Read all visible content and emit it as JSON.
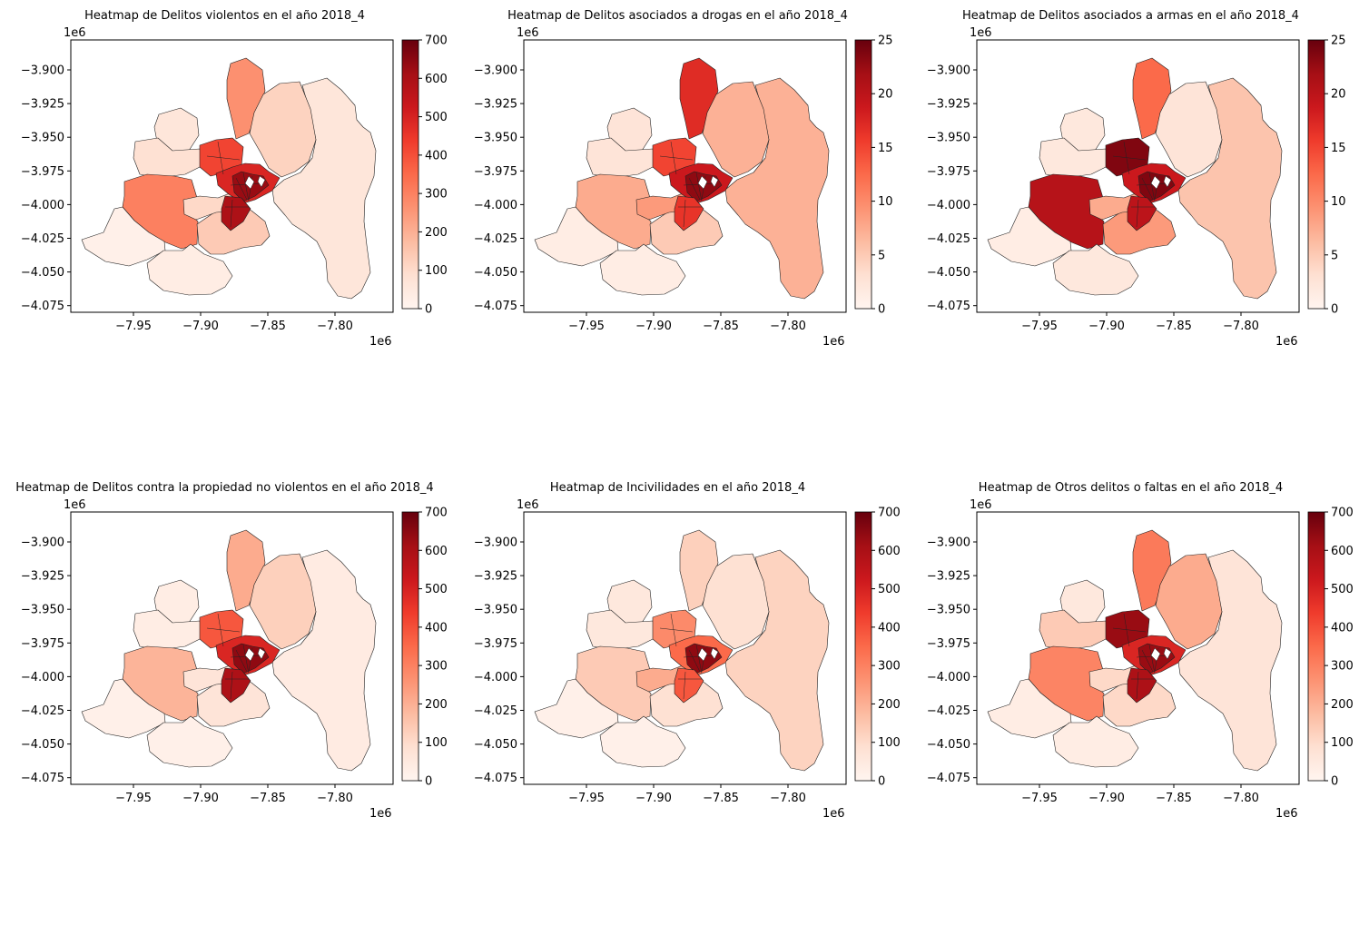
{
  "chart_data": [
    {
      "type": "heatmap",
      "title": "Heatmap de Delitos violentos en el año 2018_4",
      "x_ticks": [
        "−7.95",
        "−7.90",
        "−7.85",
        "−7.80"
      ],
      "y_ticks": [
        "−3.900",
        "−3.925",
        "−3.950",
        "−3.975",
        "−4.000",
        "−4.025",
        "−4.050",
        "−4.075"
      ],
      "x_offset": "1e6",
      "y_offset": "1e6",
      "colorbar_ticks": [
        "0",
        "100",
        "200",
        "300",
        "400",
        "500",
        "600",
        "700"
      ],
      "vmin": 0,
      "vmax": 700,
      "regions": {
        "north": 0.38,
        "northeast": 0.17,
        "east": 0.09,
        "west_big": 0.43,
        "northwest": 0.09,
        "west_small": 0.12,
        "southwest": 0.03,
        "south": 0.05,
        "south_mid": 0.2,
        "inner_west": 0.15,
        "core": 0.9,
        "core_ring": 0.7,
        "core_nw": 0.6,
        "core_s": 0.85
      }
    },
    {
      "type": "heatmap",
      "title": "Heatmap de Delitos asociados a drogas en el año 2018_4",
      "x_ticks": [
        "−7.95",
        "−7.90",
        "−7.85",
        "−7.80"
      ],
      "y_ticks": [
        "−3.900",
        "−3.925",
        "−3.950",
        "−3.975",
        "−4.000",
        "−4.025",
        "−4.050",
        "−4.075"
      ],
      "x_offset": "1e6",
      "y_offset": "1e6",
      "colorbar_ticks": [
        "0",
        "5",
        "10",
        "15",
        "20",
        "25"
      ],
      "vmin": 0,
      "vmax": 25,
      "regions": {
        "north": 0.68,
        "northeast": 0.28,
        "east": 0.28,
        "west_big": 0.3,
        "northwest": 0.1,
        "west_small": 0.1,
        "southwest": 0.05,
        "south": 0.05,
        "south_mid": 0.2,
        "inner_west": 0.35,
        "core": 0.92,
        "core_ring": 0.75,
        "core_nw": 0.6,
        "core_s": 0.65
      }
    },
    {
      "type": "heatmap",
      "title": "Heatmap de Delitos asociados a armas en el año 2018_4",
      "x_ticks": [
        "−7.95",
        "−7.90",
        "−7.85",
        "−7.80"
      ],
      "y_ticks": [
        "−3.900",
        "−3.925",
        "−3.950",
        "−3.975",
        "−4.000",
        "−4.025",
        "−4.050",
        "−4.075"
      ],
      "x_offset": "1e6",
      "y_offset": "1e6",
      "colorbar_ticks": [
        "0",
        "5",
        "10",
        "15",
        "20",
        "25"
      ],
      "vmin": 0,
      "vmax": 25,
      "regions": {
        "north": 0.5,
        "northeast": 0.1,
        "east": 0.22,
        "west_big": 0.82,
        "northwest": 0.08,
        "west_small": 0.08,
        "southwest": 0.05,
        "south": 0.08,
        "south_mid": 0.35,
        "inner_west": 0.3,
        "core": 0.95,
        "core_ring": 0.75,
        "core_nw": 0.95,
        "core_s": 0.8
      }
    },
    {
      "type": "heatmap",
      "title": "Heatmap de Delitos contra la propiedad no violentos en el año 2018_4",
      "x_ticks": [
        "−7.95",
        "−7.90",
        "−7.85",
        "−7.80"
      ],
      "y_ticks": [
        "−3.900",
        "−3.925",
        "−3.950",
        "−3.975",
        "−4.000",
        "−4.025",
        "−4.050",
        "−4.075"
      ],
      "x_offset": "1e6",
      "y_offset": "1e6",
      "colorbar_ticks": [
        "0",
        "100",
        "200",
        "300",
        "400",
        "500",
        "600",
        "700"
      ],
      "vmin": 0,
      "vmax": 700,
      "regions": {
        "north": 0.3,
        "northeast": 0.18,
        "east": 0.06,
        "west_big": 0.27,
        "northwest": 0.05,
        "west_small": 0.05,
        "southwest": 0.03,
        "south": 0.03,
        "south_mid": 0.1,
        "inner_west": 0.1,
        "core": 0.92,
        "core_ring": 0.7,
        "core_nw": 0.55,
        "core_s": 0.85
      }
    },
    {
      "type": "heatmap",
      "title": "Heatmap de Incivilidades en el año 2018_4",
      "x_ticks": [
        "−7.95",
        "−7.90",
        "−7.85",
        "−7.80"
      ],
      "y_ticks": [
        "−3.900",
        "−3.925",
        "−3.950",
        "−3.975",
        "−4.000",
        "−4.025",
        "−4.050",
        "−4.075"
      ],
      "x_offset": "1e6",
      "y_offset": "1e6",
      "colorbar_ticks": [
        "0",
        "100",
        "200",
        "300",
        "400",
        "500",
        "600",
        "700"
      ],
      "vmin": 0,
      "vmax": 700,
      "regions": {
        "north": 0.18,
        "northeast": 0.12,
        "east": 0.17,
        "west_big": 0.2,
        "northwest": 0.08,
        "west_small": 0.08,
        "southwest": 0.03,
        "south": 0.03,
        "south_mid": 0.12,
        "inner_west": 0.3,
        "core": 0.92,
        "core_ring": 0.5,
        "core_nw": 0.4,
        "core_s": 0.55
      }
    },
    {
      "type": "heatmap",
      "title": "Heatmap de Otros delitos o faltas en el año 2018_4",
      "x_ticks": [
        "−7.95",
        "−7.90",
        "−7.85",
        "−7.80"
      ],
      "y_ticks": [
        "−3.900",
        "−3.925",
        "−3.950",
        "−3.975",
        "−4.000",
        "−4.025",
        "−4.050",
        "−4.075"
      ],
      "x_offset": "1e6",
      "y_offset": "1e6",
      "colorbar_ticks": [
        "0",
        "100",
        "200",
        "300",
        "400",
        "500",
        "600",
        "700"
      ],
      "vmin": 0,
      "vmax": 700,
      "regions": {
        "north": 0.45,
        "northeast": 0.3,
        "east": 0.1,
        "west_big": 0.42,
        "northwest": 0.08,
        "west_small": 0.2,
        "southwest": 0.05,
        "south": 0.05,
        "south_mid": 0.15,
        "inner_west": 0.15,
        "core": 0.9,
        "core_ring": 0.7,
        "core_nw": 0.9,
        "core_s": 0.85
      }
    }
  ]
}
